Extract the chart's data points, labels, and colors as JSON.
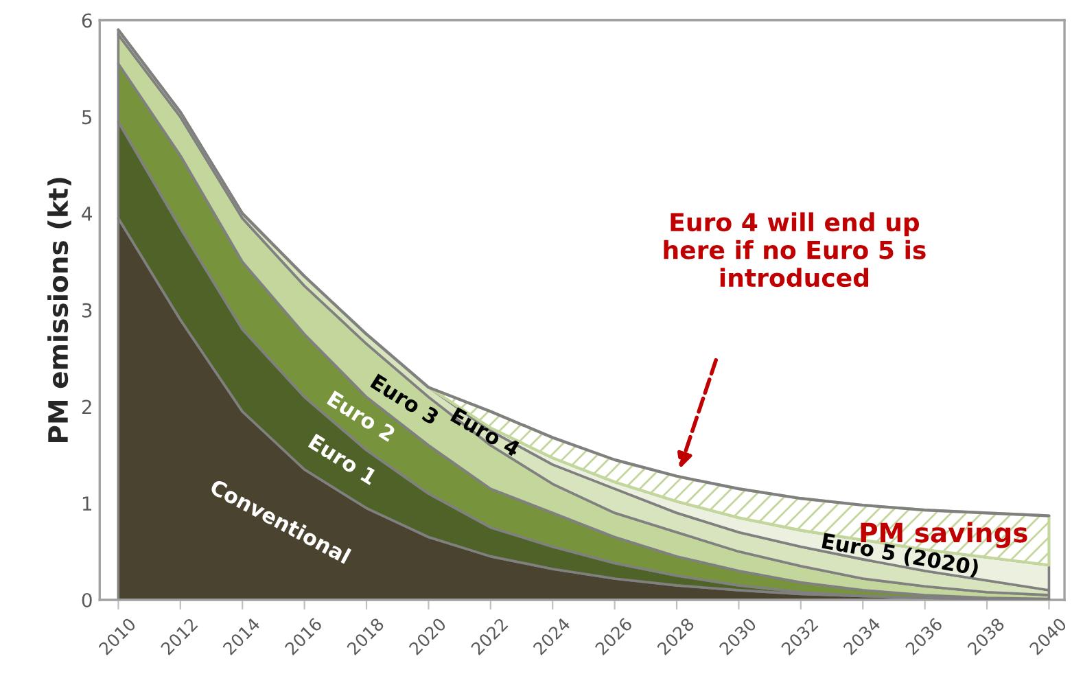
{
  "chart_data": {
    "type": "area",
    "stacked": true,
    "ylabel": "PM emissions (kt)",
    "x": [
      2010,
      2012,
      2014,
      2016,
      2018,
      2020,
      2022,
      2024,
      2026,
      2028,
      2030,
      2032,
      2034,
      2036,
      2038,
      2040
    ],
    "series": [
      {
        "name": "Conventional",
        "color": "#4a4330",
        "values": [
          3.95,
          2.9,
          1.95,
          1.35,
          0.95,
          0.65,
          0.45,
          0.32,
          0.22,
          0.15,
          0.1,
          0.06,
          0.04,
          0.02,
          0.01,
          0
        ]
      },
      {
        "name": "Euro 1",
        "color": "#4f6228",
        "values": [
          1.0,
          0.95,
          0.85,
          0.75,
          0.6,
          0.45,
          0.3,
          0.23,
          0.16,
          0.1,
          0.05,
          0.02,
          0,
          0,
          0,
          0
        ]
      },
      {
        "name": "Euro 2",
        "color": "#77933c",
        "values": [
          0.6,
          0.75,
          0.7,
          0.65,
          0.55,
          0.5,
          0.4,
          0.35,
          0.27,
          0.2,
          0.15,
          0.1,
          0.06,
          0.03,
          0.01,
          0.01
        ]
      },
      {
        "name": "Euro 3",
        "color": "#c3d69b",
        "values": [
          0.3,
          0.4,
          0.45,
          0.5,
          0.55,
          0.5,
          0.45,
          0.3,
          0.25,
          0.25,
          0.2,
          0.17,
          0.12,
          0.09,
          0.06,
          0.04
        ]
      },
      {
        "name": "Euro 4",
        "color": "#d7e4bd",
        "values": [
          0.05,
          0.05,
          0.05,
          0.1,
          0.1,
          0.1,
          0.15,
          0.2,
          0.25,
          0.2,
          0.2,
          0.2,
          0.2,
          0.16,
          0.12,
          0.05
        ]
      },
      {
        "name": "Euro 5 (2020)",
        "color": "#ebf1de",
        "values": [
          0,
          0,
          0,
          0,
          0,
          0,
          0.03,
          0.07,
          0.07,
          0.12,
          0.15,
          0.17,
          0.2,
          0.22,
          0.24,
          0.26
        ]
      },
      {
        "name": "PM savings",
        "color": "#c3d69b",
        "values": [
          0,
          0,
          0,
          0,
          0,
          0,
          0.17,
          0.21,
          0.23,
          0.26,
          0.3,
          0.33,
          0.36,
          0.41,
          0.46,
          0.51
        ]
      }
    ],
    "xlim": [
      2009.4,
      2040.5
    ],
    "ylim": [
      0,
      6
    ],
    "xticks": [
      2010,
      2012,
      2014,
      2016,
      2018,
      2020,
      2022,
      2024,
      2026,
      2028,
      2030,
      2032,
      2034,
      2036,
      2038,
      2040
    ],
    "yticks": [
      0,
      1,
      2,
      3,
      4,
      5,
      6
    ],
    "annotations": [
      "Euro 4 will end up\nhere if no Euro 5 is\nintroduced"
    ],
    "grid": false,
    "legend": false
  }
}
